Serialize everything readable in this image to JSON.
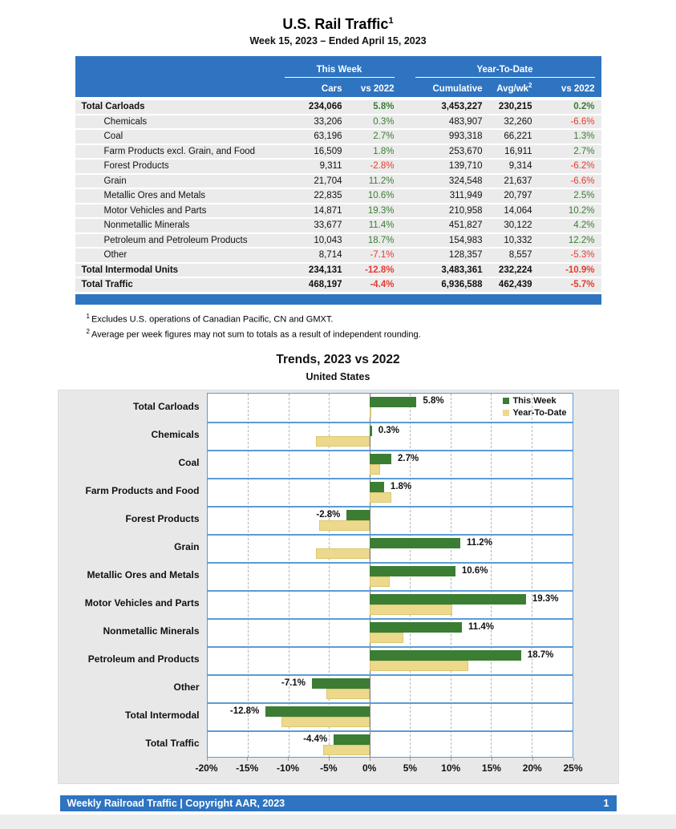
{
  "header": {
    "title": "U.S. Rail Traffic",
    "title_sup": "1",
    "subtitle": "Week 15, 2023 – Ended April 15, 2023"
  },
  "table": {
    "groups": {
      "this_week": "This Week",
      "year_to_date": "Year-To-Date"
    },
    "columns": {
      "cars": "Cars",
      "vs2022_week": "vs 2022",
      "cumulative": "Cumulative",
      "avg_wk": "Avg/wk",
      "avg_wk_sup": "2",
      "vs2022_ytd": "vs 2022"
    },
    "rows": [
      {
        "label": "Total Carloads",
        "total": true,
        "cars": "234,066",
        "week_vs": "5.8%",
        "week_vs_dir": "up",
        "cumulative": "3,453,227",
        "avg_wk": "230,215",
        "ytd_vs": "0.2%",
        "ytd_vs_dir": "up"
      },
      {
        "label": "Chemicals",
        "total": false,
        "cars": "33,206",
        "week_vs": "0.3%",
        "week_vs_dir": "up",
        "cumulative": "483,907",
        "avg_wk": "32,260",
        "ytd_vs": "-6.6%",
        "ytd_vs_dir": "down"
      },
      {
        "label": "Coal",
        "total": false,
        "cars": "63,196",
        "week_vs": "2.7%",
        "week_vs_dir": "up",
        "cumulative": "993,318",
        "avg_wk": "66,221",
        "ytd_vs": "1.3%",
        "ytd_vs_dir": "up"
      },
      {
        "label": "Farm Products excl. Grain, and Food",
        "total": false,
        "cars": "16,509",
        "week_vs": "1.8%",
        "week_vs_dir": "up",
        "cumulative": "253,670",
        "avg_wk": "16,911",
        "ytd_vs": "2.7%",
        "ytd_vs_dir": "up"
      },
      {
        "label": "Forest Products",
        "total": false,
        "cars": "9,311",
        "week_vs": "-2.8%",
        "week_vs_dir": "down",
        "cumulative": "139,710",
        "avg_wk": "9,314",
        "ytd_vs": "-6.2%",
        "ytd_vs_dir": "down"
      },
      {
        "label": "Grain",
        "total": false,
        "cars": "21,704",
        "week_vs": "11.2%",
        "week_vs_dir": "up",
        "cumulative": "324,548",
        "avg_wk": "21,637",
        "ytd_vs": "-6.6%",
        "ytd_vs_dir": "down"
      },
      {
        "label": "Metallic Ores and Metals",
        "total": false,
        "cars": "22,835",
        "week_vs": "10.6%",
        "week_vs_dir": "up",
        "cumulative": "311,949",
        "avg_wk": "20,797",
        "ytd_vs": "2.5%",
        "ytd_vs_dir": "up"
      },
      {
        "label": "Motor Vehicles and Parts",
        "total": false,
        "cars": "14,871",
        "week_vs": "19.3%",
        "week_vs_dir": "up",
        "cumulative": "210,958",
        "avg_wk": "14,064",
        "ytd_vs": "10.2%",
        "ytd_vs_dir": "up"
      },
      {
        "label": "Nonmetallic Minerals",
        "total": false,
        "cars": "33,677",
        "week_vs": "11.4%",
        "week_vs_dir": "up",
        "cumulative": "451,827",
        "avg_wk": "30,122",
        "ytd_vs": "4.2%",
        "ytd_vs_dir": "up"
      },
      {
        "label": "Petroleum and Petroleum Products",
        "total": false,
        "cars": "10,043",
        "week_vs": "18.7%",
        "week_vs_dir": "up",
        "cumulative": "154,983",
        "avg_wk": "10,332",
        "ytd_vs": "12.2%",
        "ytd_vs_dir": "up"
      },
      {
        "label": "Other",
        "total": false,
        "cars": "8,714",
        "week_vs": "-7.1%",
        "week_vs_dir": "down",
        "cumulative": "128,357",
        "avg_wk": "8,557",
        "ytd_vs": "-5.3%",
        "ytd_vs_dir": "down"
      },
      {
        "label": "Total Intermodal Units",
        "total": true,
        "cars": "234,131",
        "week_vs": "-12.8%",
        "week_vs_dir": "down",
        "cumulative": "3,483,361",
        "avg_wk": "232,224",
        "ytd_vs": "-10.9%",
        "ytd_vs_dir": "down"
      },
      {
        "label": "Total Traffic",
        "total": true,
        "cars": "468,197",
        "week_vs": "-4.4%",
        "week_vs_dir": "down",
        "cumulative": "6,936,588",
        "avg_wk": "462,439",
        "ytd_vs": "-5.7%",
        "ytd_vs_dir": "down"
      }
    ]
  },
  "footnotes": [
    {
      "sup": "1",
      "text": "Excludes U.S. operations of Canadian Pacific, CN and GMXT."
    },
    {
      "sup": "2",
      "text": "Average per week figures may not sum to totals as a result of independent rounding."
    }
  ],
  "chart": {
    "title": "Trends, 2023 vs 2022",
    "subtitle": "United States",
    "legend": [
      {
        "name": "This Week",
        "color": "#3b7d33"
      },
      {
        "name": "Year-To-Date",
        "color": "#ecd98b"
      }
    ]
  },
  "chart_data": {
    "type": "bar",
    "orientation": "horizontal",
    "title": "Trends, 2023 vs 2022",
    "subtitle": "United States",
    "categories": [
      "Total Carloads",
      "Chemicals",
      "Coal",
      "Farm Products and Food",
      "Forest Products",
      "Grain",
      "Metallic Ores and Metals",
      "Motor Vehicles and Parts",
      "Nonmetallic Minerals",
      "Petroleum and Products",
      "Other",
      "Total Intermodal",
      "Total Traffic"
    ],
    "series": [
      {
        "name": "This Week",
        "color": "#3b7d33",
        "values": [
          5.8,
          0.3,
          2.7,
          1.8,
          -2.8,
          11.2,
          10.6,
          19.3,
          11.4,
          18.7,
          -7.1,
          -12.8,
          -4.4
        ]
      },
      {
        "name": "Year-To-Date",
        "color": "#ecd98b",
        "values": [
          0.2,
          -6.6,
          1.3,
          2.7,
          -6.2,
          -6.6,
          2.5,
          10.2,
          4.2,
          12.2,
          -5.3,
          -10.9,
          -5.7
        ]
      }
    ],
    "bar_labels": [
      "5.8%",
      "0.3%",
      "2.7%",
      "1.8%",
      "-2.8%",
      "11.2%",
      "10.6%",
      "19.3%",
      "11.4%",
      "18.7%",
      "-7.1%",
      "-12.8%",
      "-4.4%"
    ],
    "xlim": [
      -20,
      25
    ],
    "x_tick_values": [
      -20,
      -15,
      -10,
      -5,
      0,
      5,
      10,
      15,
      20,
      25
    ],
    "x_tick_labels": [
      "-20%",
      "-15%",
      "-10%",
      "-5%",
      "0%",
      "5%",
      "10%",
      "15%",
      "20%",
      "25%"
    ],
    "grid": "vertical-dashed",
    "legend_position": "top-right"
  },
  "colors": {
    "header_blue": "#2e74c1",
    "plot_border_blue": "#5b9bd5",
    "bar_green": "#3b7d33",
    "bar_yellow": "#ecd98b",
    "positive_green": "#3a7d33",
    "negative_red": "#e8392e",
    "row_gray": "#ebebeb",
    "panel_gray": "#e8e8e8"
  },
  "footer": {
    "text": "Weekly Railroad Traffic | Copyright AAR, 2023",
    "page_number": "1"
  }
}
